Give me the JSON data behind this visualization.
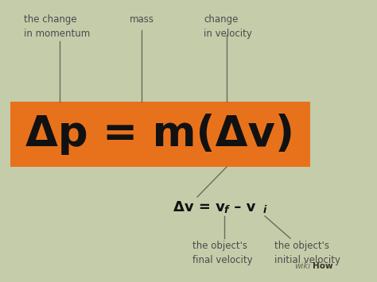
{
  "bg_color": "#c5ccaa",
  "orange_color": "#e8721c",
  "text_dark": "#111111",
  "text_gray": "#4a4a4a",
  "main_formula": "Δp = m(Δv)",
  "label_top_left": "the change\nin momentum",
  "label_top_mid": "mass",
  "label_top_right": "change\nin velocity",
  "label_bot_left": "the object's\nfinal velocity",
  "label_bot_right": "the object's\ninitial velocity",
  "wikihow_normal": "wiki",
  "wikihow_bold": "How",
  "fig_width": 4.74,
  "fig_height": 3.55,
  "dpi": 100,
  "line_color": "#6b6b5a"
}
